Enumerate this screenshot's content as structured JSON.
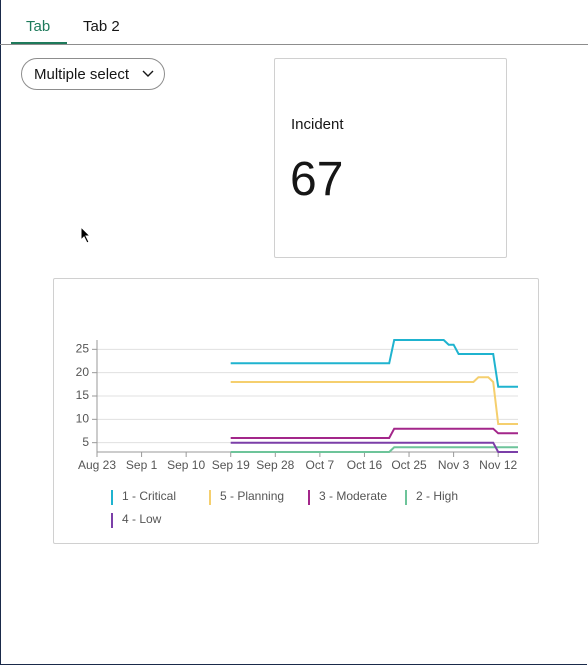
{
  "tabs": [
    "Tab",
    "Tab 2"
  ],
  "select": {
    "label": "Multiple select"
  },
  "kpi": {
    "label": "Incident",
    "value": 67
  },
  "chart_data": {
    "type": "line",
    "xlim": [
      "Aug 23",
      "Nov 16"
    ],
    "xticks": [
      "Aug 23",
      "Sep 1",
      "Sep 10",
      "Sep 19",
      "Sep 28",
      "Oct 7",
      "Oct 16",
      "Oct 25",
      "Nov 3",
      "Nov 12"
    ],
    "ylim": [
      3,
      27
    ],
    "yticks": [
      5,
      10,
      15,
      20,
      25
    ],
    "grid": true,
    "series": [
      {
        "name": "1 - Critical",
        "color": "#1fb3cf",
        "x": [
          "Sep 19",
          "Oct 21",
          "Oct 22",
          "Nov 1",
          "Nov 2",
          "Nov 3",
          "Nov 4",
          "Nov 11",
          "Nov 12",
          "Nov 16"
        ],
        "values": [
          22,
          22,
          27,
          27,
          26,
          26,
          24,
          24,
          17,
          17
        ]
      },
      {
        "name": "5 - Planning",
        "color": "#f5cf6e",
        "x": [
          "Sep 19",
          "Nov 7",
          "Nov 8",
          "Nov 10",
          "Nov 11",
          "Nov 12",
          "Nov 16"
        ],
        "values": [
          18,
          18,
          19,
          19,
          18,
          9,
          9
        ]
      },
      {
        "name": "3 - Moderate",
        "color": "#a3268a",
        "x": [
          "Sep 19",
          "Oct 21",
          "Oct 22",
          "Nov 11",
          "Nov 12",
          "Nov 16"
        ],
        "values": [
          6,
          6,
          8,
          8,
          7,
          7
        ]
      },
      {
        "name": "2 - High",
        "color": "#6dc49a",
        "x": [
          "Sep 19",
          "Oct 21",
          "Oct 22",
          "Nov 16"
        ],
        "values": [
          3,
          3,
          4,
          4
        ]
      },
      {
        "name": "4 - Low",
        "color": "#7b3fa8",
        "x": [
          "Sep 19",
          "Nov 11",
          "Nov 12",
          "Nov 16"
        ],
        "values": [
          5,
          5,
          3,
          3
        ]
      }
    ]
  }
}
